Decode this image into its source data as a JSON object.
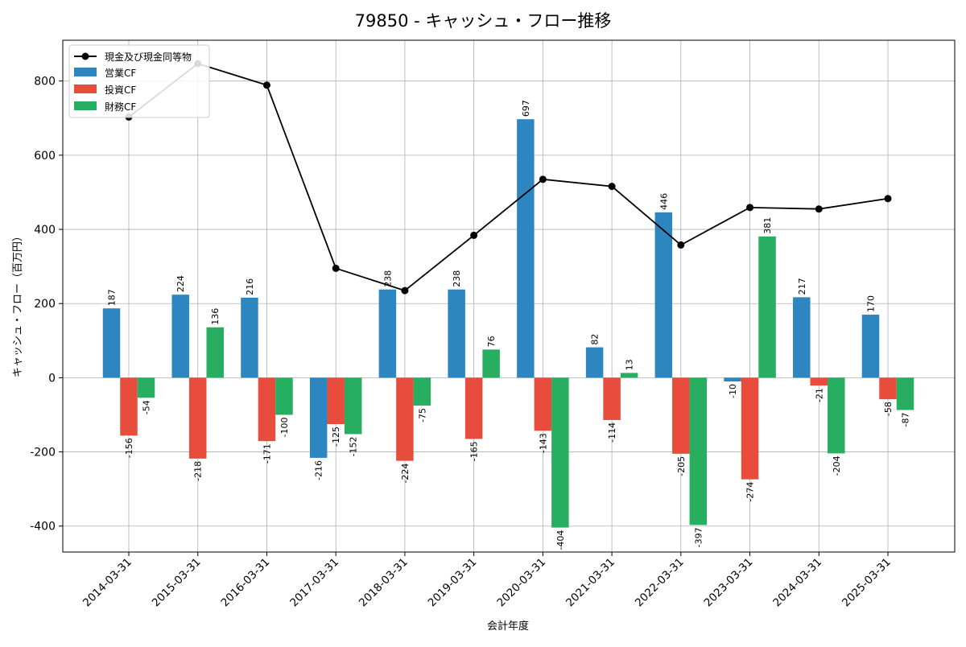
{
  "chart_data": {
    "type": "bar",
    "title": "79850 - キャッシュ・フロー推移",
    "xlabel": "会計年度",
    "ylabel": "キャッシュ・フロー（百万円）",
    "ylim": [
      -470,
      910
    ],
    "yticks": [
      -400,
      -200,
      0,
      200,
      400,
      600,
      800
    ],
    "grid": true,
    "legend_position": "top-left",
    "categories": [
      "2014-03-31",
      "2015-03-31",
      "2016-03-31",
      "2017-03-31",
      "2018-03-31",
      "2019-03-31",
      "2020-03-31",
      "2021-03-31",
      "2022-03-31",
      "2023-03-31",
      "2024-03-31",
      "2025-03-31"
    ],
    "line": {
      "name": "現金及び現金同等物",
      "color": "#000000",
      "values": [
        703,
        847,
        789,
        295,
        235,
        384,
        535,
        516,
        358,
        459,
        455,
        483
      ]
    },
    "series": [
      {
        "name": "営業CF",
        "color": "#2e86c1",
        "values": [
          187,
          224,
          216,
          -216,
          238,
          238,
          697,
          82,
          446,
          -10,
          217,
          170
        ]
      },
      {
        "name": "投資CF",
        "color": "#e74c3c",
        "values": [
          -156,
          -218,
          -171,
          -125,
          -224,
          -165,
          -143,
          -114,
          -205,
          -274,
          -21,
          -58
        ]
      },
      {
        "name": "財務CF",
        "color": "#27ae60",
        "values": [
          -54,
          null,
          -100,
          -152,
          -75,
          76,
          -404,
          13,
          -397,
          381,
          -204,
          -87
        ]
      }
    ],
    "data_labels": [
      [
        "187",
        "-156",
        "-54"
      ],
      [
        "224",
        "-218",
        "136"
      ],
      [
        "216",
        "-171",
        "-100"
      ],
      [
        "-216",
        "-125",
        "-152"
      ],
      [
        "238",
        "-224",
        "-75"
      ],
      [
        "238",
        "-165",
        "76"
      ],
      [
        "697",
        "-143",
        "-404"
      ],
      [
        "82",
        "-114",
        "13"
      ],
      [
        "446",
        "-205",
        "-397"
      ],
      [
        "-10",
        "-274",
        "381"
      ],
      [
        "217",
        "-21",
        "-204"
      ],
      [
        "170",
        "-58",
        "-87"
      ]
    ],
    "finance_2015": 136
  }
}
